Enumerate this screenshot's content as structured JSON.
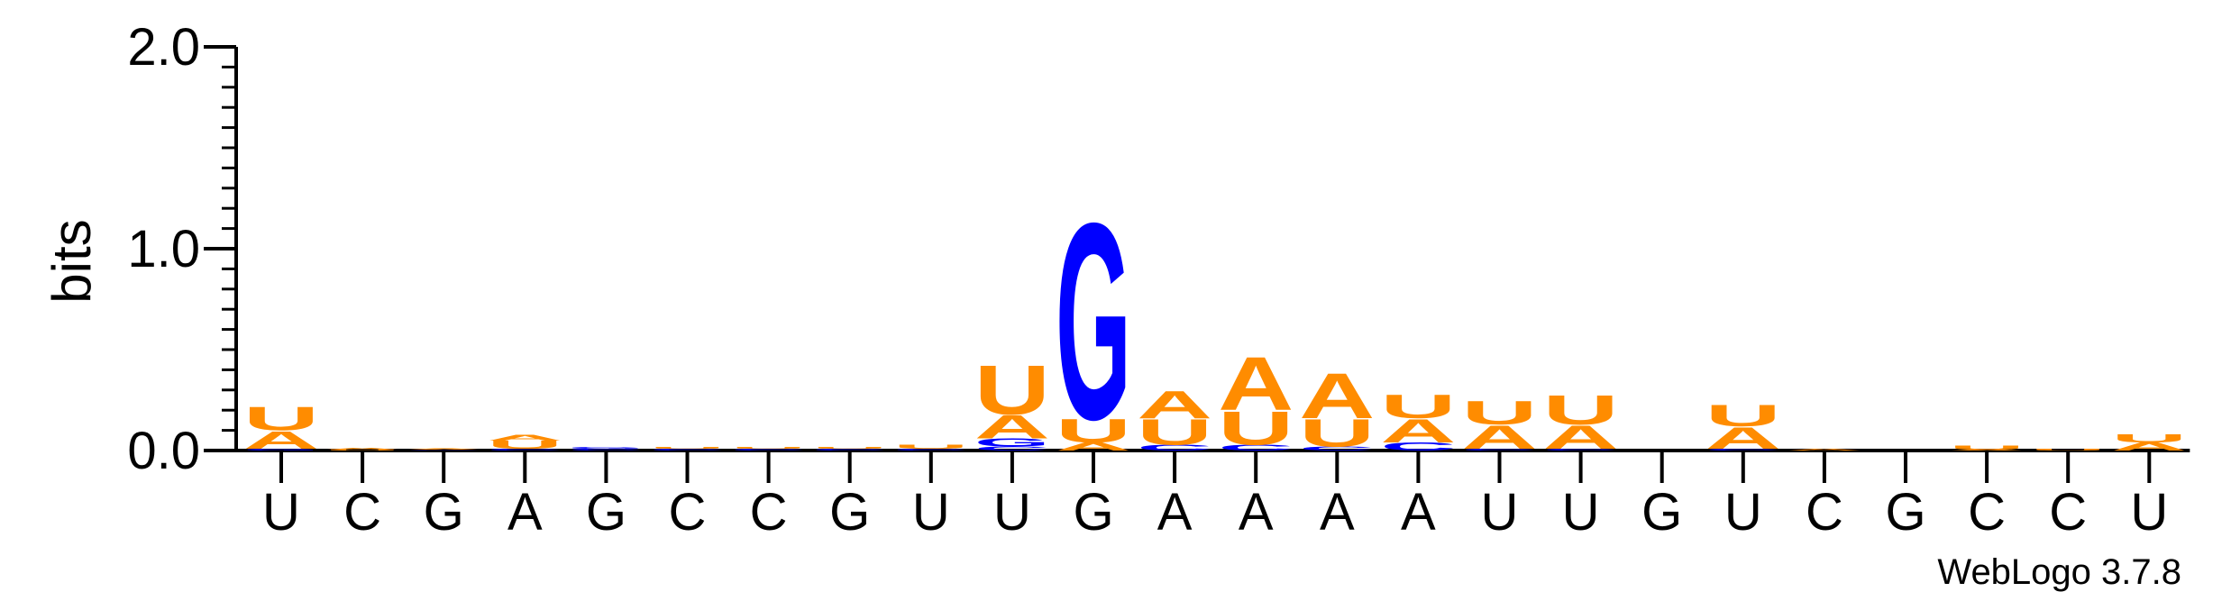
{
  "chart_data": {
    "type": "sequence-logo",
    "title": "",
    "ylabel": "bits",
    "xlabel": "",
    "ylim": [
      0,
      2.0
    ],
    "yticks": [
      "0.0",
      "1.0",
      "2.0"
    ],
    "credit": "WebLogo 3.7.8",
    "colors": {
      "A": "#FF8C00",
      "U": "#FF8C00",
      "G": "#0000FF",
      "C": "#0000FF"
    },
    "positions": [
      {
        "label": "U",
        "stack": [
          {
            "letter": "G",
            "value": 0.01
          },
          {
            "letter": "A",
            "value": 0.09
          },
          {
            "letter": "U",
            "value": 0.12
          }
        ]
      },
      {
        "label": "C",
        "stack": [
          {
            "letter": "U",
            "value": 0.005
          },
          {
            "letter": "A",
            "value": 0.008
          }
        ]
      },
      {
        "label": "G",
        "stack": [
          {
            "letter": "C",
            "value": 0.004
          },
          {
            "letter": "A",
            "value": 0.006
          }
        ]
      },
      {
        "label": "A",
        "stack": [
          {
            "letter": "C",
            "value": 0.01
          },
          {
            "letter": "U",
            "value": 0.04
          },
          {
            "letter": "A",
            "value": 0.03
          }
        ]
      },
      {
        "label": "G",
        "stack": [
          {
            "letter": "C",
            "value": 0.01
          },
          {
            "letter": "G",
            "value": 0.01
          }
        ]
      },
      {
        "label": "C",
        "stack": [
          {
            "letter": "C",
            "value": 0.01
          },
          {
            "letter": "U",
            "value": 0.01
          }
        ]
      },
      {
        "label": "C",
        "stack": [
          {
            "letter": "C",
            "value": 0.01
          },
          {
            "letter": "U",
            "value": 0.01
          }
        ]
      },
      {
        "label": "G",
        "stack": [
          {
            "letter": "C",
            "value": 0.01
          },
          {
            "letter": "U",
            "value": 0.01
          }
        ]
      },
      {
        "label": "U",
        "stack": [
          {
            "letter": "C",
            "value": 0.01
          },
          {
            "letter": "U",
            "value": 0.02
          }
        ]
      },
      {
        "label": "U",
        "stack": [
          {
            "letter": "C",
            "value": 0.02
          },
          {
            "letter": "G",
            "value": 0.04
          },
          {
            "letter": "A",
            "value": 0.12
          },
          {
            "letter": "U",
            "value": 0.25
          }
        ]
      },
      {
        "label": "G",
        "stack": [
          {
            "letter": "A",
            "value": 0.04
          },
          {
            "letter": "U",
            "value": 0.12
          },
          {
            "letter": "G",
            "value": 1.0
          }
        ]
      },
      {
        "label": "A",
        "stack": [
          {
            "letter": "C",
            "value": 0.03
          },
          {
            "letter": "U",
            "value": 0.13
          },
          {
            "letter": "A",
            "value": 0.14
          }
        ]
      },
      {
        "label": "A",
        "stack": [
          {
            "letter": "C",
            "value": 0.03
          },
          {
            "letter": "U",
            "value": 0.17
          },
          {
            "letter": "A",
            "value": 0.27
          }
        ]
      },
      {
        "label": "A",
        "stack": [
          {
            "letter": "C",
            "value": 0.02
          },
          {
            "letter": "U",
            "value": 0.14
          },
          {
            "letter": "A",
            "value": 0.23
          }
        ]
      },
      {
        "label": "A",
        "stack": [
          {
            "letter": "C",
            "value": 0.04
          },
          {
            "letter": "A",
            "value": 0.12
          },
          {
            "letter": "U",
            "value": 0.12
          }
        ]
      },
      {
        "label": "U",
        "stack": [
          {
            "letter": "C",
            "value": 0.01
          },
          {
            "letter": "A",
            "value": 0.12
          },
          {
            "letter": "U",
            "value": 0.12
          }
        ]
      },
      {
        "label": "U",
        "stack": [
          {
            "letter": "C",
            "value": 0.01
          },
          {
            "letter": "A",
            "value": 0.12
          },
          {
            "letter": "U",
            "value": 0.15
          }
        ]
      },
      {
        "label": "G",
        "stack": []
      },
      {
        "label": "U",
        "stack": [
          {
            "letter": "C",
            "value": 0.01
          },
          {
            "letter": "A",
            "value": 0.11
          },
          {
            "letter": "U",
            "value": 0.11
          }
        ]
      },
      {
        "label": "C",
        "stack": [
          {
            "letter": "A",
            "value": 0.01
          }
        ]
      },
      {
        "label": "G",
        "stack": []
      },
      {
        "label": "C",
        "stack": [
          {
            "letter": "A",
            "value": 0.005
          },
          {
            "letter": "U",
            "value": 0.02
          }
        ]
      },
      {
        "label": "C",
        "stack": [
          {
            "letter": "U",
            "value": 0.01
          }
        ]
      },
      {
        "label": "U",
        "stack": [
          {
            "letter": "A",
            "value": 0.04
          },
          {
            "letter": "U",
            "value": 0.04
          }
        ]
      }
    ]
  }
}
